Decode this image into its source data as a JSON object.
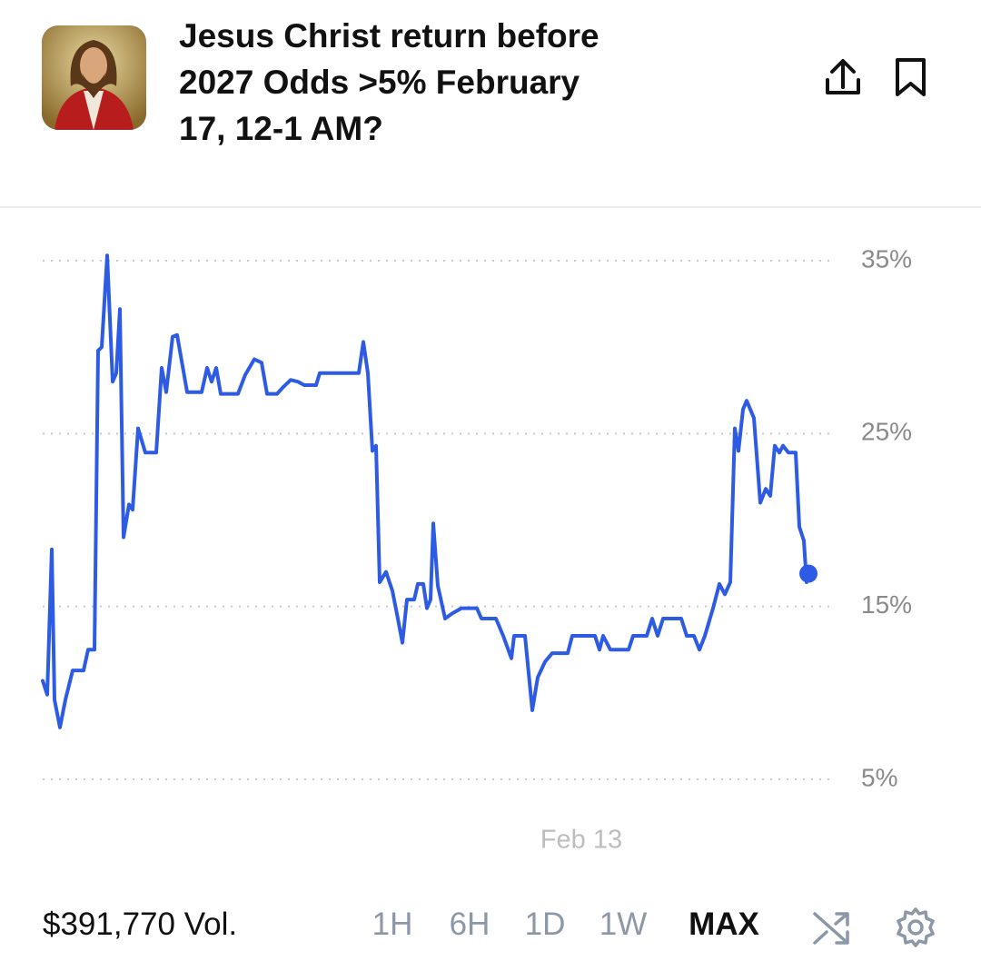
{
  "header": {
    "title": "Jesus Christ return before 2027 Odds >5% February 17, 12-1 AM?"
  },
  "chart_data": {
    "type": "line",
    "series": [
      {
        "color": "#2d5be3",
        "x": [
          0,
          5,
          10,
          13,
          19,
          25,
          33,
          45,
          50,
          57,
          61,
          65,
          71,
          77,
          81,
          85,
          89,
          95,
          99,
          105,
          113,
          125,
          131,
          136,
          143,
          148,
          159,
          168,
          175,
          181,
          186,
          191,
          196,
          215,
          223,
          233,
          241,
          247,
          258,
          265,
          273,
          281,
          288,
          301,
          305,
          348,
          353,
          358,
          363,
          367,
          371,
          378,
          385,
          391,
          396,
          401,
          409,
          413,
          419,
          423,
          427,
          430,
          435,
          443,
          451,
          461,
          478,
          483,
          499,
          507,
          516,
          519,
          531,
          539,
          545,
          553,
          561,
          578,
          583,
          608,
          613,
          617,
          625,
          645,
          650,
          665,
          671,
          677,
          683,
          703,
          709,
          717,
          723,
          729,
          738,
          745,
          751,
          757,
          762,
          766,
          771,
          775,
          783,
          790,
          796,
          801,
          806,
          811,
          815,
          821,
          829,
          833,
          838,
          841,
          843
        ],
        "values": [
          10.7,
          9.9,
          18.3,
          9.6,
          8.0,
          9.6,
          11.3,
          11.3,
          12.5,
          12.5,
          29.8,
          30.0,
          35.3,
          28.0,
          28.5,
          32.2,
          19.0,
          20.9,
          20.6,
          25.3,
          23.9,
          23.9,
          28.8,
          27.4,
          30.6,
          30.7,
          27.4,
          27.4,
          27.4,
          28.8,
          28.0,
          28.8,
          27.3,
          27.3,
          28.4,
          29.3,
          29.1,
          27.3,
          27.3,
          27.7,
          28.1,
          28.0,
          27.8,
          27.8,
          28.5,
          28.5,
          30.3,
          28.5,
          24.0,
          24.3,
          16.4,
          17.0,
          15.9,
          14.3,
          12.9,
          15.4,
          15.4,
          16.3,
          16.3,
          14.9,
          15.4,
          19.8,
          16.2,
          14.3,
          14.6,
          14.9,
          14.9,
          14.3,
          14.3,
          13.3,
          12.0,
          13.3,
          13.3,
          9.0,
          10.9,
          11.8,
          12.3,
          12.3,
          13.3,
          13.3,
          12.5,
          13.3,
          12.5,
          12.5,
          13.3,
          13.3,
          14.3,
          13.3,
          14.3,
          14.3,
          13.3,
          13.3,
          12.5,
          13.3,
          14.9,
          16.3,
          15.7,
          16.4,
          25.3,
          24.0,
          26.4,
          26.9,
          25.9,
          21.0,
          21.8,
          21.4,
          24.3,
          23.9,
          24.3,
          23.9,
          23.9,
          19.6,
          18.8,
          16.4,
          16.9
        ]
      }
    ],
    "xlim": [
      0,
      843
    ],
    "xticks": [
      {
        "value": 593,
        "label": "Feb 13"
      }
    ],
    "ylim": [
      5,
      35
    ],
    "yticks": [
      {
        "value": 5,
        "label": "5%"
      },
      {
        "value": 15,
        "label": "15%"
      },
      {
        "value": 25,
        "label": "25%"
      },
      {
        "value": 35,
        "label": "35%"
      }
    ],
    "grid": true
  },
  "footer": {
    "volume": "$391,770 Vol.",
    "ranges": [
      "1H",
      "6H",
      "1D",
      "1W",
      "MAX"
    ]
  }
}
